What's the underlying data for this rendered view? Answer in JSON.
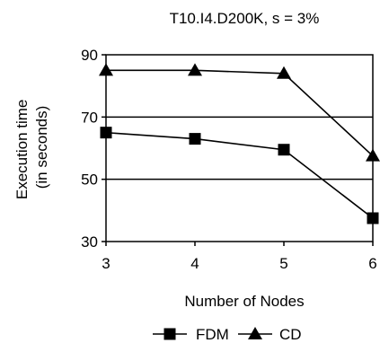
{
  "chart_data": {
    "type": "line",
    "title": "T10.I4.D200K, s = 3%",
    "xlabel": "Number of Nodes",
    "ylabel_lines": [
      "Execution time",
      "(in seconds)"
    ],
    "x": [
      3,
      4,
      5,
      6
    ],
    "xlim": [
      3,
      6
    ],
    "ylim": [
      30,
      90
    ],
    "yticks": [
      30,
      50,
      70,
      90
    ],
    "grid": "horizontal",
    "legend_position": "bottom",
    "series": [
      {
        "name": "FDM",
        "marker": "square",
        "color": "#000000",
        "values": [
          65,
          63,
          59.5,
          37.5
        ]
      },
      {
        "name": "CD",
        "marker": "triangle",
        "color": "#000000",
        "values": [
          85,
          85,
          84,
          57.5
        ]
      }
    ]
  }
}
